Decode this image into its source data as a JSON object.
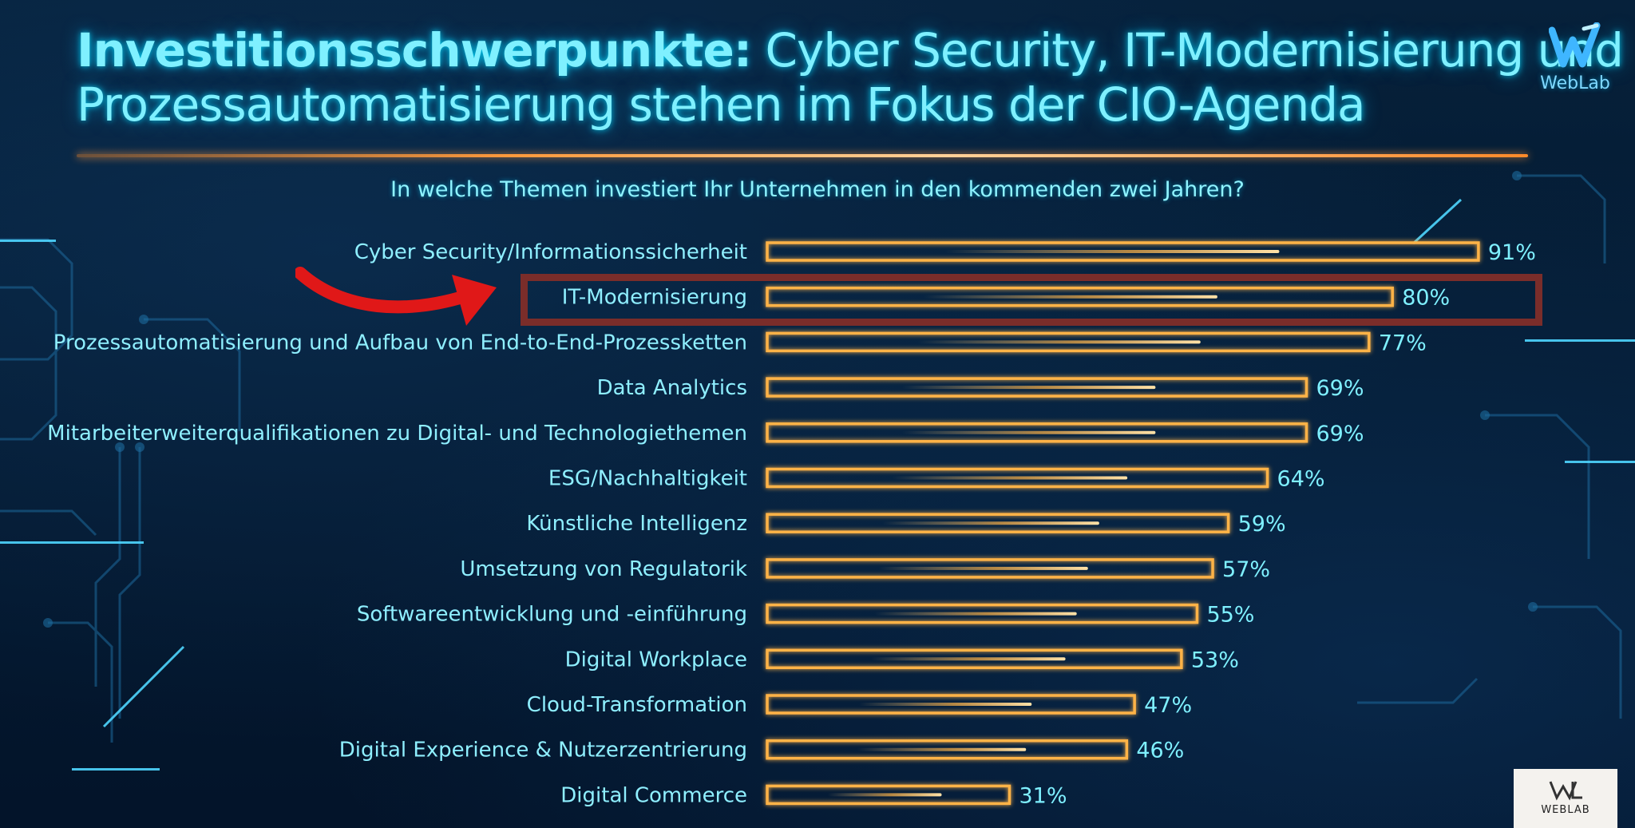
{
  "title": {
    "line1_bold": "Investitionsschwerpunkte:",
    "line1_rest": " Cyber Security, IT-Modernisierung und",
    "line2": "Prozessautomatisierung stehen im Fokus der CIO-Agenda"
  },
  "logo": {
    "text": "WebLab",
    "icon": "weblab-logo-icon"
  },
  "badge": {
    "text": "WEBLAB",
    "icon": "weblab-monogram-icon"
  },
  "highlight": {
    "category": "IT-Modernisierung",
    "arrow_icon": "red-arrow-icon"
  },
  "colors": {
    "title": "#7ff0ff",
    "bar_outline": "#ffb347",
    "bar_rail": "#1fd7ff",
    "highlight_box": "#7a2d2a",
    "arrow": "#e01818"
  },
  "chart_data": {
    "type": "bar",
    "orientation": "horizontal",
    "title": "In welche Themen investiert Ihr Unternehmen in den kommenden zwei Jahren?",
    "categories": [
      "Cyber Security/Informationssicherheit",
      "IT-Modernisierung",
      "Prozessautomatisierung und Aufbau von End-to-End-Prozessketten",
      "Data Analytics",
      "Mitarbeiterweiterqualifikationen zu Digital- und Technologiethemen",
      "ESG/Nachhaltigkeit",
      "Künstliche Intelligenz",
      "Umsetzung von Regulatorik",
      "Softwareentwicklung und -einführung",
      "Digital Workplace",
      "Cloud-Transformation",
      "Digital Experience & Nutzerzentrierung",
      "Digital Commerce"
    ],
    "values": [
      91,
      80,
      77,
      69,
      69,
      64,
      59,
      57,
      55,
      53,
      47,
      46,
      31
    ],
    "value_labels": [
      "91%",
      "80%",
      "77%",
      "69%",
      "69%",
      "64%",
      "59%",
      "57%",
      "55%",
      "53%",
      "47%",
      "46%",
      "31%"
    ],
    "unit": "%",
    "xlim": [
      0,
      100
    ],
    "grid": false,
    "legend": "none"
  }
}
